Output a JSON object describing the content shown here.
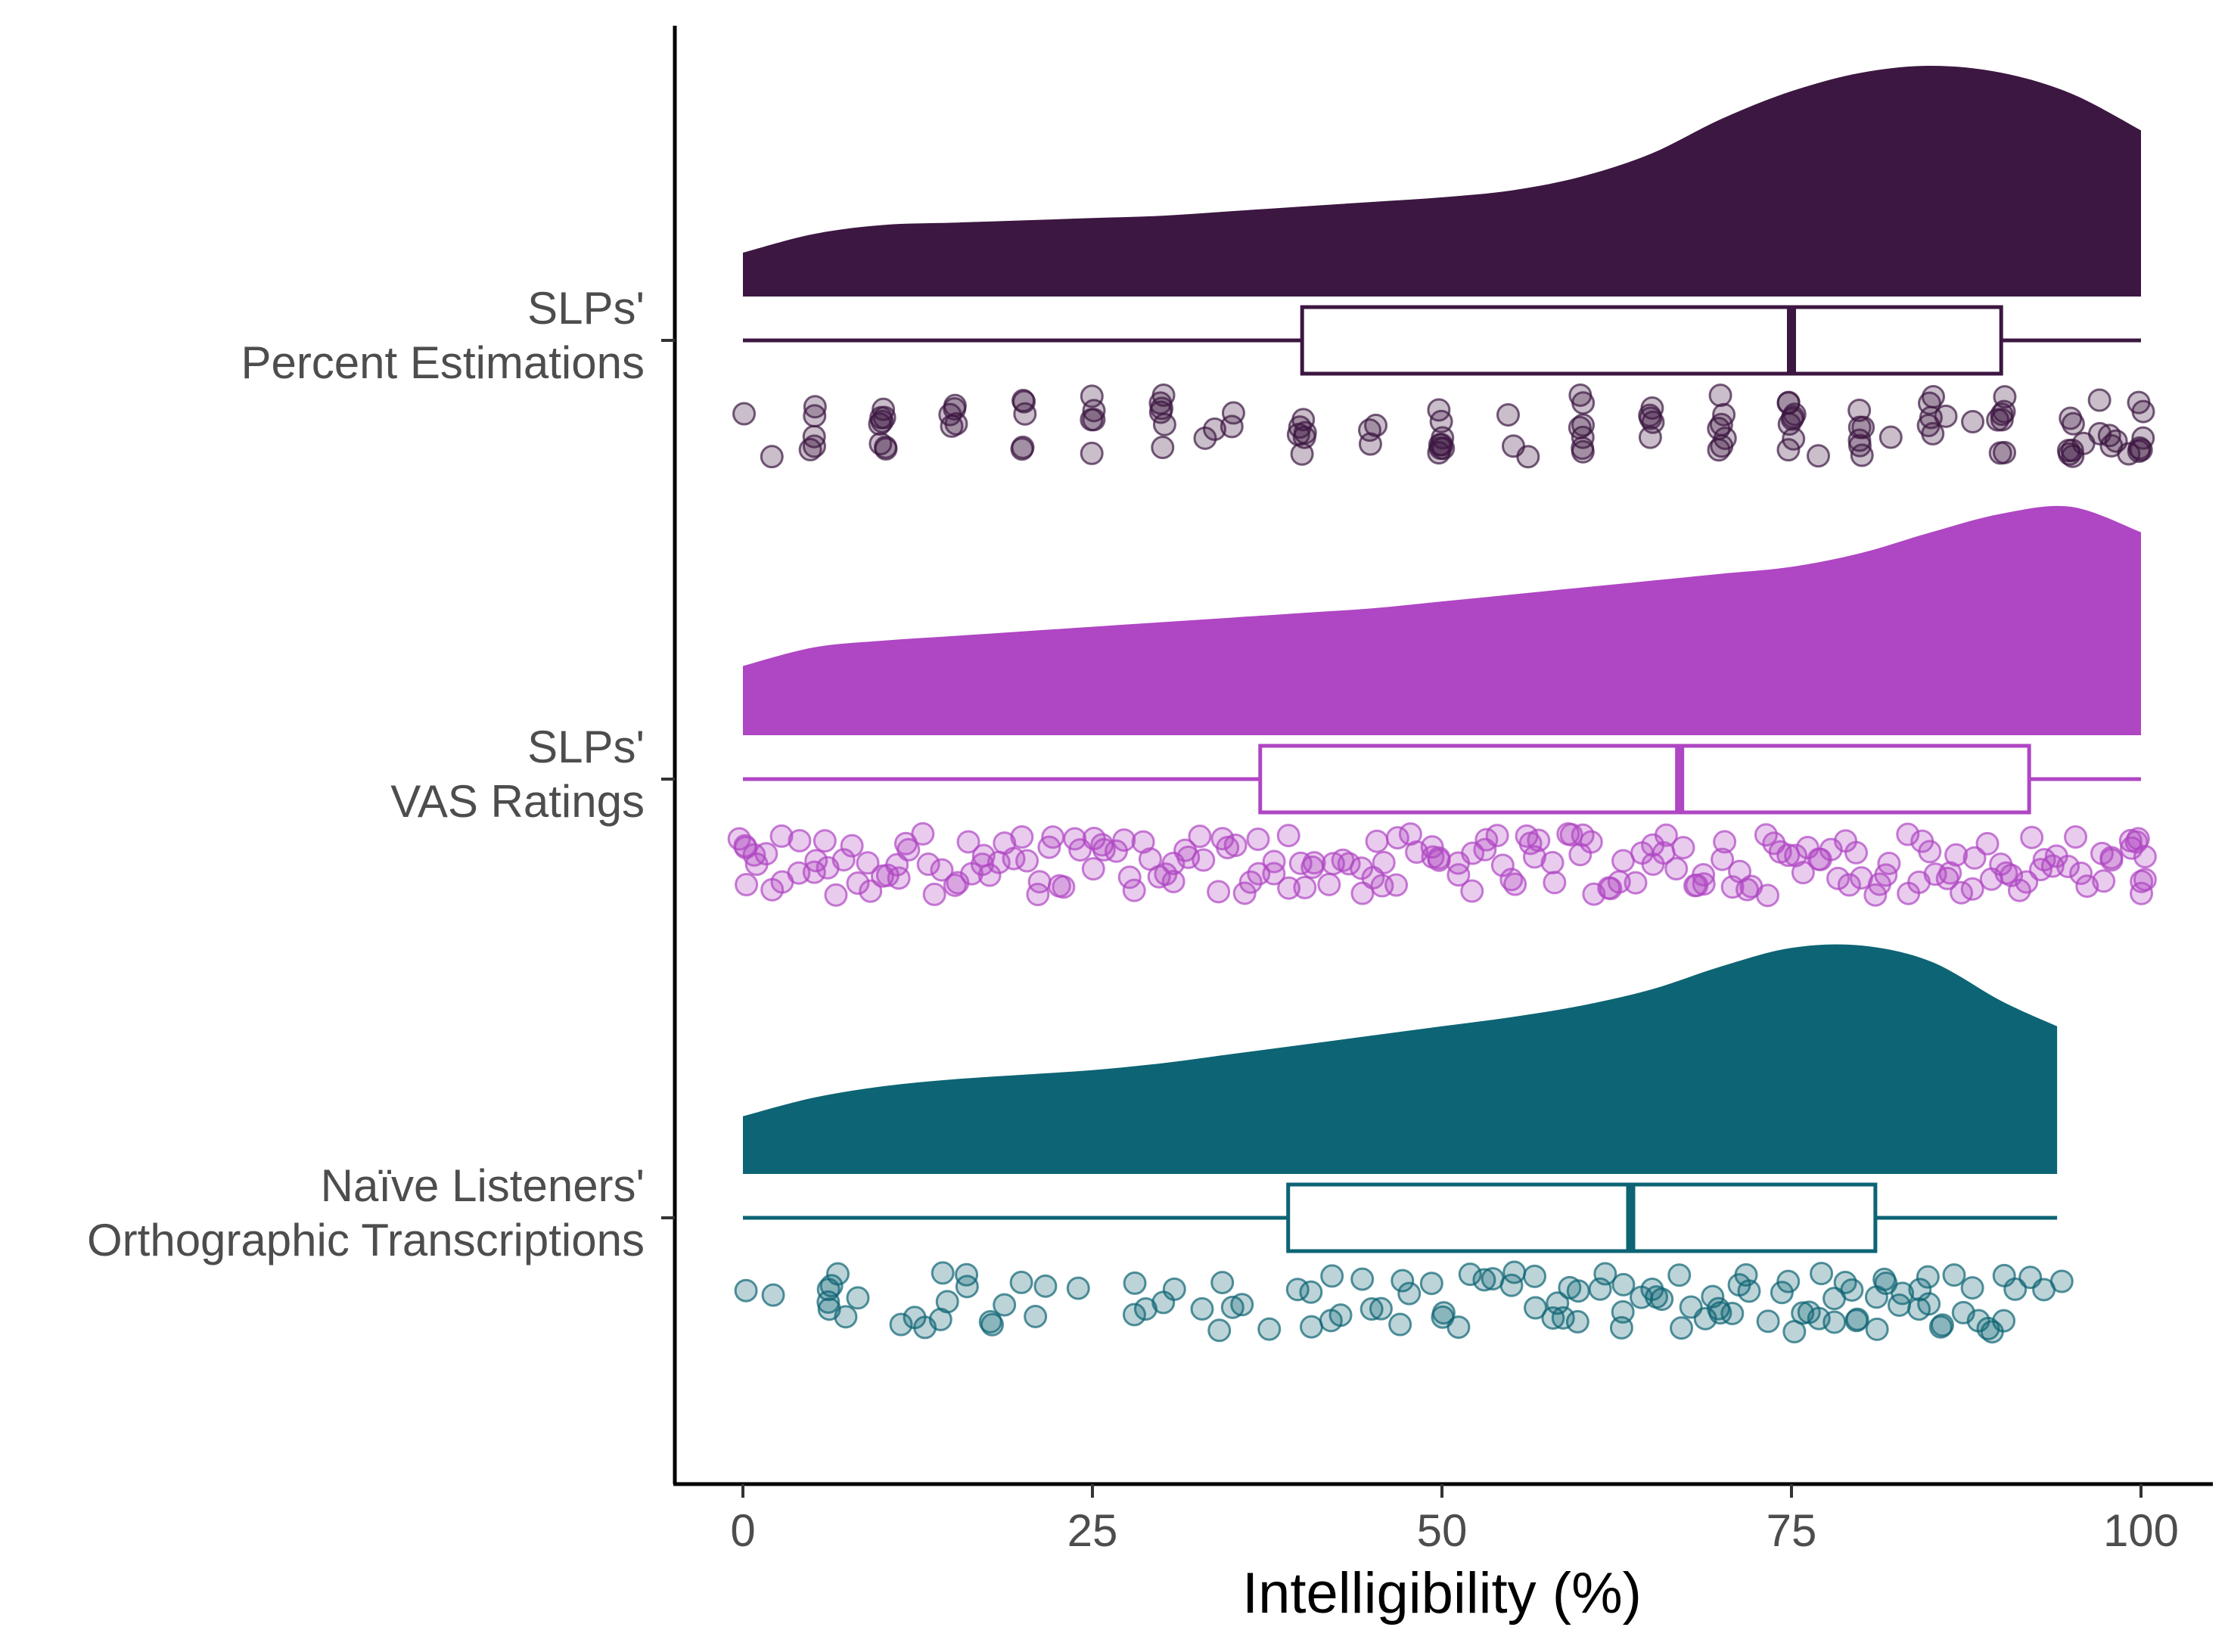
{
  "chart_data": {
    "type": "raincloud",
    "title": "",
    "xlabel": "Intelligibility (%)",
    "ylabel": "",
    "xlim": [
      -10,
      105
    ],
    "x_ticks": [
      0,
      25,
      50,
      75,
      100
    ],
    "x_tick_labels": [
      "0",
      "25",
      "50",
      "75",
      "100"
    ],
    "grid": false,
    "legend": "none",
    "groups": [
      {
        "id": "slp-percent",
        "label_lines": [
          "SLPs'",
          "Percent Estimations"
        ],
        "color": "#3c1741",
        "box": {
          "min": 0,
          "q1": 40,
          "median": 75,
          "q3": 90,
          "max": 100
        },
        "density": {
          "x": [
            0,
            5,
            10,
            15,
            20,
            25,
            30,
            35,
            40,
            45,
            50,
            55,
            60,
            65,
            70,
            75,
            80,
            85,
            90,
            95,
            100
          ],
          "y": [
            0.19,
            0.27,
            0.31,
            0.32,
            0.33,
            0.34,
            0.35,
            0.37,
            0.39,
            0.41,
            0.43,
            0.46,
            0.52,
            0.62,
            0.77,
            0.89,
            0.97,
            1.0,
            0.97,
            0.88,
            0.72
          ]
        },
        "points": [
          0,
          2,
          5,
          5,
          5,
          5,
          5,
          10,
          10,
          10,
          10,
          10,
          10,
          10,
          10,
          15,
          15,
          15,
          15,
          15,
          20,
          20,
          20,
          20,
          20,
          25,
          25,
          25,
          25,
          25,
          30,
          30,
          30,
          30,
          30,
          30,
          33,
          34,
          35,
          35,
          40,
          40,
          40,
          40,
          40,
          40,
          45,
          45,
          45,
          50,
          50,
          50,
          50,
          50,
          50,
          50,
          50,
          55,
          55,
          56,
          60,
          60,
          60,
          60,
          60,
          60,
          60,
          65,
          65,
          65,
          65,
          65,
          70,
          70,
          70,
          70,
          70,
          70,
          70,
          75,
          75,
          75,
          75,
          75,
          75,
          75,
          75,
          77,
          80,
          80,
          80,
          80,
          80,
          80,
          82,
          85,
          85,
          85,
          85,
          85,
          86,
          88,
          90,
          90,
          90,
          90,
          90,
          90,
          90,
          95,
          95,
          95,
          95,
          95,
          95,
          96,
          97,
          97,
          98,
          98,
          98,
          99,
          100,
          100,
          100,
          100,
          100,
          100
        ]
      },
      {
        "id": "slp-vas",
        "label_lines": [
          "SLPs'",
          "VAS Ratings"
        ],
        "color": "#af46c3",
        "box": {
          "min": 0,
          "q1": 37,
          "median": 67,
          "q3": 92,
          "max": 100
        },
        "density": {
          "x": [
            0,
            5,
            10,
            15,
            20,
            25,
            30,
            35,
            40,
            45,
            50,
            55,
            60,
            65,
            70,
            75,
            80,
            85,
            90,
            95,
            100
          ],
          "y": [
            0.3,
            0.38,
            0.41,
            0.43,
            0.45,
            0.47,
            0.49,
            0.51,
            0.53,
            0.55,
            0.58,
            0.61,
            0.64,
            0.67,
            0.7,
            0.73,
            0.79,
            0.88,
            0.96,
            0.99,
            0.88
          ]
        },
        "points": [
          0,
          0,
          0,
          0,
          1,
          1,
          2,
          2,
          3,
          3,
          4,
          4,
          5,
          5,
          6,
          6,
          7,
          7,
          8,
          8,
          9,
          9,
          10,
          10,
          11,
          11,
          12,
          12,
          13,
          13,
          14,
          14,
          15,
          15,
          16,
          16,
          17,
          17,
          18,
          18,
          19,
          19,
          20,
          20,
          21,
          21,
          22,
          22,
          23,
          23,
          24,
          24,
          25,
          25,
          26,
          26,
          27,
          27,
          28,
          28,
          29,
          29,
          30,
          30,
          31,
          31,
          32,
          32,
          33,
          33,
          34,
          34,
          35,
          35,
          36,
          36,
          37,
          37,
          38,
          38,
          39,
          39,
          40,
          40,
          41,
          41,
          42,
          42,
          43,
          43,
          44,
          44,
          45,
          45,
          46,
          46,
          47,
          47,
          48,
          48,
          49,
          49,
          50,
          50,
          51,
          51,
          52,
          52,
          53,
          53,
          54,
          54,
          55,
          55,
          56,
          56,
          57,
          57,
          58,
          58,
          59,
          59,
          60,
          60,
          61,
          61,
          62,
          62,
          63,
          63,
          64,
          64,
          65,
          65,
          66,
          66,
          67,
          67,
          68,
          68,
          69,
          69,
          70,
          70,
          71,
          71,
          72,
          72,
          73,
          73,
          74,
          74,
          75,
          75,
          76,
          76,
          77,
          77,
          78,
          78,
          79,
          79,
          80,
          80,
          81,
          81,
          82,
          82,
          83,
          83,
          84,
          84,
          85,
          85,
          86,
          86,
          87,
          87,
          88,
          88,
          89,
          89,
          90,
          90,
          91,
          91,
          92,
          92,
          93,
          93,
          94,
          94,
          95,
          95,
          96,
          96,
          97,
          97,
          98,
          98,
          99,
          99,
          100,
          100,
          100,
          100,
          100,
          100
        ]
      },
      {
        "id": "naive-ortho",
        "label_lines": [
          "Naïve Listeners'",
          "Orthographic Transcriptions"
        ],
        "color": "#0d6474",
        "box": {
          "min": 0,
          "q1": 39,
          "median": 63.5,
          "q3": 81,
          "max": 94
        },
        "density": {
          "x": [
            0,
            5,
            10,
            15,
            20,
            25,
            30,
            35,
            40,
            45,
            50,
            55,
            60,
            65,
            70,
            75,
            80,
            85,
            90,
            94
          ],
          "y": [
            0.25,
            0.33,
            0.38,
            0.41,
            0.43,
            0.45,
            0.48,
            0.52,
            0.56,
            0.6,
            0.64,
            0.68,
            0.73,
            0.8,
            0.9,
            0.98,
            0.99,
            0.92,
            0.75,
            0.64
          ]
        },
        "points": [
          0,
          2,
          6,
          6,
          6,
          6,
          7,
          7,
          8,
          11,
          12,
          13,
          14,
          14,
          15,
          16,
          16,
          18,
          18,
          19,
          20,
          21,
          22,
          24,
          28,
          28,
          29,
          30,
          31,
          33,
          34,
          34,
          35,
          36,
          38,
          40,
          41,
          41,
          42,
          42,
          43,
          44,
          45,
          46,
          47,
          47,
          48,
          49,
          50,
          50,
          51,
          52,
          53,
          54,
          55,
          55,
          57,
          57,
          58,
          58,
          59,
          59,
          60,
          60,
          61,
          62,
          63,
          63,
          63,
          64,
          65,
          65,
          66,
          67,
          67,
          68,
          69,
          69,
          70,
          70,
          71,
          71,
          72,
          72,
          73,
          74,
          75,
          75,
          76,
          76,
          77,
          77,
          78,
          78,
          79,
          79,
          80,
          80,
          81,
          81,
          82,
          82,
          83,
          83,
          84,
          84,
          85,
          85,
          86,
          86,
          87,
          87,
          88,
          88,
          89,
          89,
          90,
          90,
          91,
          92,
          93,
          94
        ]
      }
    ]
  }
}
